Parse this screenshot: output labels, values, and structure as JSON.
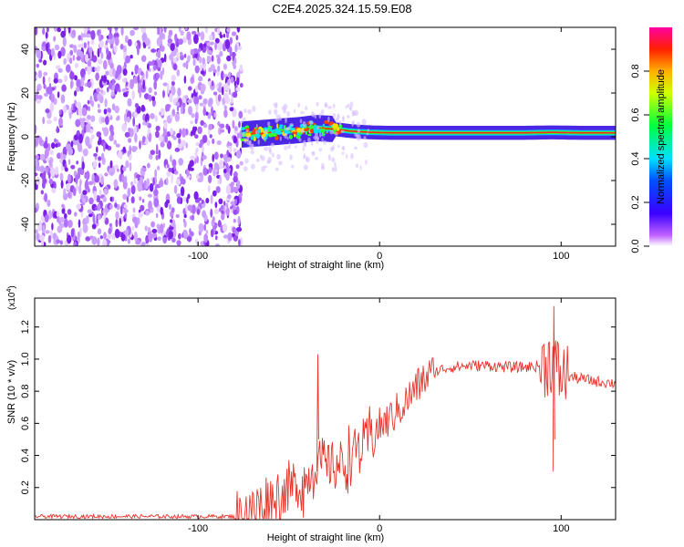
{
  "figure": {
    "title": "C2E4.2025.324.15.59.E08"
  },
  "chart_data": [
    {
      "type": "heatmap",
      "title": "C2E4.2025.324.15.59.E08",
      "xlabel": "Height of straight line (km)",
      "ylabel": "Frequency (Hz)",
      "xlim": [
        -190,
        130
      ],
      "ylim": [
        -50,
        50
      ],
      "xticks": [
        -100,
        0,
        100
      ],
      "yticks": [
        -40,
        -20,
        0,
        20,
        40
      ],
      "noise_region_x": [
        -190,
        -76
      ],
      "signal_onset_x": -76,
      "ridge": {
        "x": [
          -76,
          -60,
          -45,
          -35,
          -25,
          -15,
          -5,
          5,
          20,
          40,
          60,
          80,
          95,
          110,
          130
        ],
        "y": [
          1,
          2,
          3,
          4,
          3.5,
          2.5,
          2,
          1.8,
          1.8,
          1.8,
          1.8,
          1.8,
          2,
          1.8,
          1.8
        ]
      },
      "colorbar": {
        "label": "Normalized spectral amplitude",
        "range": [
          0.0,
          1.0
        ],
        "ticks": [
          0.0,
          0.2,
          0.4,
          0.6,
          0.8
        ]
      }
    },
    {
      "type": "line",
      "xlabel": "Height of straight line (km)",
      "ylabel": "SNR (10 * v/v)",
      "scale_label": "(x10",
      "scale_exponent": "4",
      "scale_close": ")",
      "xlim": [
        -190,
        130
      ],
      "ylim": [
        0,
        1.38
      ],
      "xticks": [
        -100,
        0,
        100
      ],
      "yticks": [
        0.2,
        0.4,
        0.6,
        0.8,
        1.0,
        1.2
      ],
      "color": "#e8332a",
      "series": [
        {
          "name": "SNR",
          "x": [
            -190,
            -150,
            -110,
            -80,
            -70,
            -60,
            -50,
            -40,
            -34,
            -30,
            -25,
            -20,
            -15,
            -10,
            -5,
            0,
            5,
            10,
            15,
            20,
            25,
            30,
            35,
            40,
            50,
            60,
            70,
            80,
            90,
            95,
            97,
            100,
            105,
            110,
            120,
            130
          ],
          "y": [
            0.02,
            0.02,
            0.02,
            0.02,
            0.06,
            0.12,
            0.18,
            0.24,
            0.4,
            0.3,
            0.36,
            0.34,
            0.42,
            0.46,
            0.52,
            0.58,
            0.62,
            0.68,
            0.74,
            0.82,
            0.88,
            0.92,
            0.94,
            0.95,
            0.96,
            0.96,
            0.95,
            0.95,
            0.96,
            1.0,
            0.94,
            0.9,
            0.89,
            0.88,
            0.86,
            0.85
          ]
        }
      ],
      "peaks": [
        {
          "x": -34,
          "y": 1.03
        },
        {
          "x": 96,
          "y": 1.33
        }
      ]
    }
  ]
}
